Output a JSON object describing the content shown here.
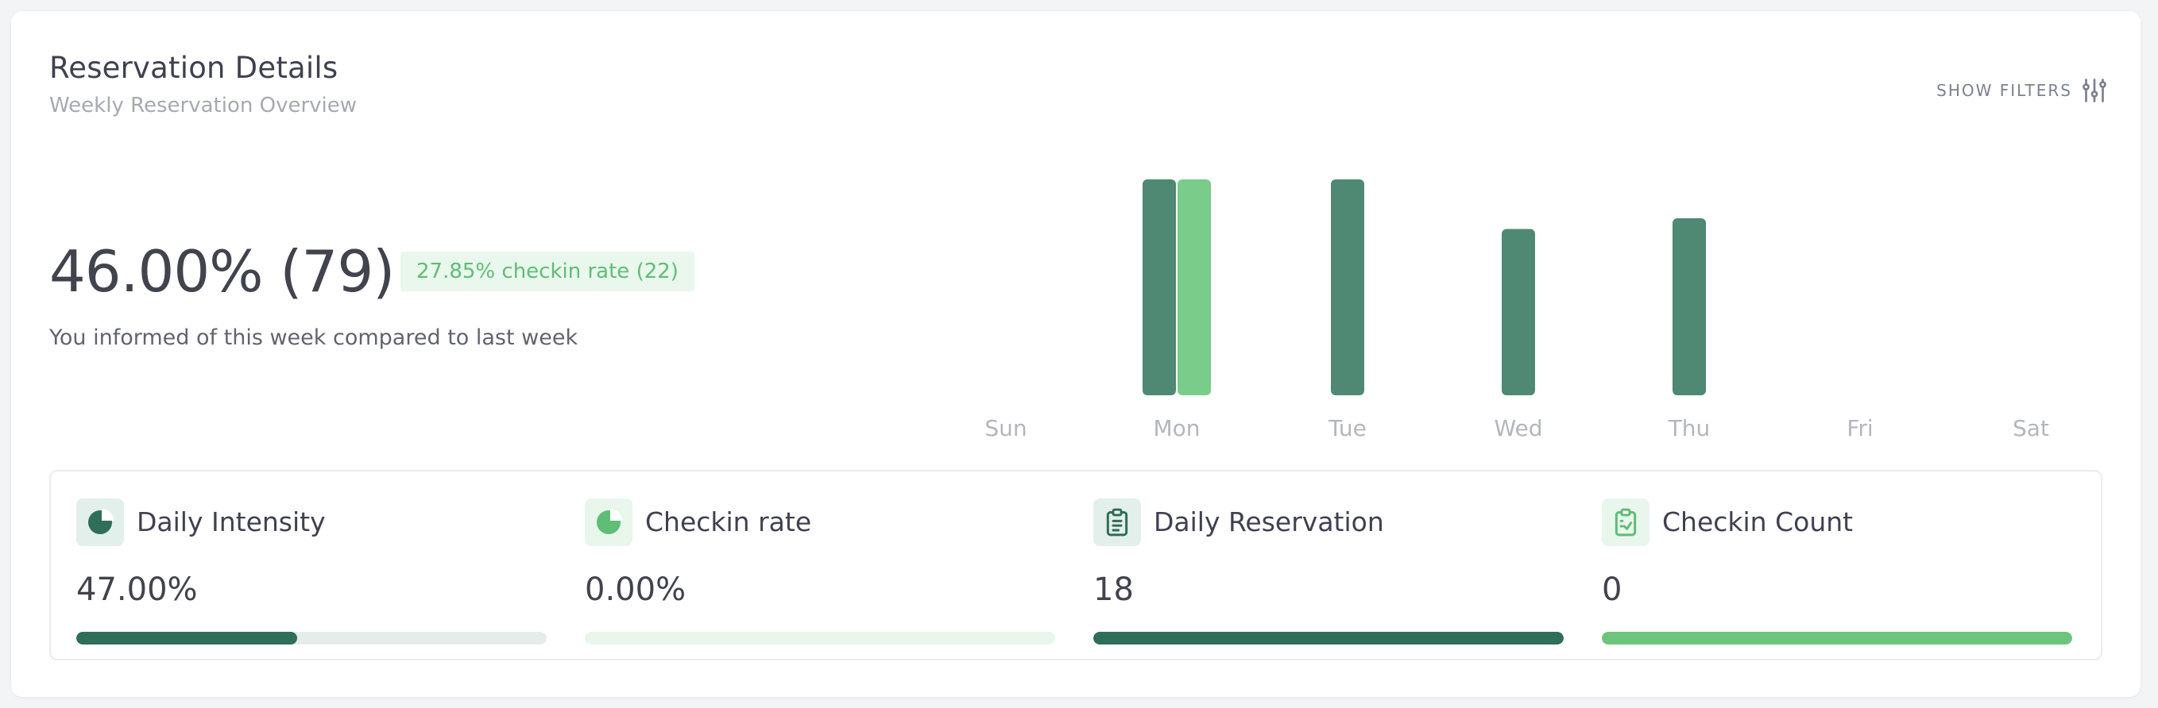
{
  "header": {
    "title": "Reservation Details",
    "subtitle": "Weekly Reservation Overview",
    "filters_label": "SHOW FILTERS",
    "filters_icon": "sliders-icon"
  },
  "summary": {
    "value": "46.00% (79)",
    "badge": "27.85% checkin rate (22)",
    "compare_text": "You informed of this week compared to last week"
  },
  "chart_data": {
    "type": "bar",
    "categories": [
      "Sun",
      "Mon",
      "Tue",
      "Wed",
      "Thu",
      "Fri",
      "Sat"
    ],
    "series": [
      {
        "values": [
          0,
          1.0,
          1.0,
          0.77,
          0.82,
          0,
          0
        ],
        "color": "#4f8873"
      },
      {
        "values": [
          0,
          1.0,
          0,
          0,
          0,
          0,
          0
        ],
        "color": "#7acc8b"
      }
    ],
    "ylim": [
      0,
      1
    ]
  },
  "stats": [
    {
      "label": "Daily Intensity",
      "value": "47.00%",
      "icon": "pie-chart-icon",
      "progress": 0.47,
      "icon_bg": "#e3efea",
      "icon_color": "#2f6e58",
      "track": "#e6ece9",
      "fill": "#2f6e58"
    },
    {
      "label": "Checkin rate",
      "value": "0.00%",
      "icon": "pie-chart-icon",
      "progress": 0.0,
      "icon_bg": "#e8f6ec",
      "icon_color": "#5fbd76",
      "track": "#e9f6ec",
      "fill": "#5fbd76"
    },
    {
      "label": "Daily Reservation",
      "value": "18",
      "icon": "clipboard-icon",
      "progress": 1.0,
      "icon_bg": "#e3efea",
      "icon_color": "#2f6e58",
      "track": "#e6ece9",
      "fill": "#2f6e58"
    },
    {
      "label": "Checkin Count",
      "value": "0",
      "icon": "clipboard-check-icon",
      "progress": 1.0,
      "icon_bg": "#e8f6ec",
      "icon_color": "#5fbd76",
      "track": "#e9f6ec",
      "fill": "#6cc47d"
    }
  ]
}
